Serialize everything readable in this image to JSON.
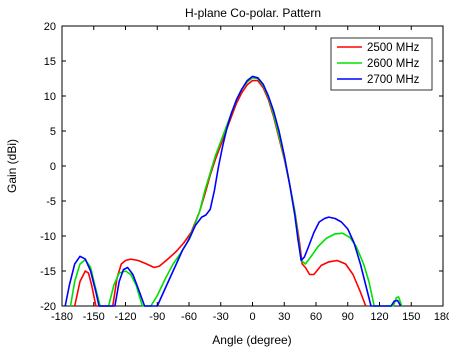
{
  "chart_data": {
    "type": "line",
    "title": "H-plane Co-polar. Pattern",
    "xlabel": "Angle (degree)",
    "ylabel": "Gain (dBi)",
    "xlim": [
      -180,
      180
    ],
    "ylim": [
      -20,
      20
    ],
    "xticks": [
      -180,
      -150,
      -120,
      -90,
      -60,
      -30,
      0,
      30,
      60,
      90,
      120,
      150,
      180
    ],
    "yticks": [
      -20,
      -15,
      -10,
      -5,
      0,
      5,
      10,
      15,
      20
    ],
    "grid": false,
    "legend_position": "top-right",
    "series": [
      {
        "name": "2500 MHz",
        "color": "#ff0000",
        "points": [
          [
            -168,
            -20
          ],
          [
            -163,
            -16.5
          ],
          [
            -158,
            -15
          ],
          [
            -155,
            -15.3
          ],
          [
            -152,
            -17
          ],
          [
            -148,
            -20
          ],
          [
            -132,
            -20
          ],
          [
            -128,
            -16
          ],
          [
            -124,
            -14
          ],
          [
            -120,
            -13.5
          ],
          [
            -115,
            -13.3
          ],
          [
            -108,
            -13.5
          ],
          [
            -100,
            -14
          ],
          [
            -93,
            -14.5
          ],
          [
            -88,
            -14.3
          ],
          [
            -80,
            -13.3
          ],
          [
            -72,
            -12.2
          ],
          [
            -65,
            -11
          ],
          [
            -58,
            -9.5
          ],
          [
            -50,
            -6.5
          ],
          [
            -45,
            -4
          ],
          [
            -40,
            -1.3
          ],
          [
            -35,
            1
          ],
          [
            -30,
            3
          ],
          [
            -25,
            5
          ],
          [
            -20,
            7
          ],
          [
            -15,
            9
          ],
          [
            -10,
            10.5
          ],
          [
            -5,
            11.6
          ],
          [
            0,
            12.2
          ],
          [
            5,
            12.2
          ],
          [
            10,
            11.2
          ],
          [
            15,
            9.5
          ],
          [
            20,
            7
          ],
          [
            25,
            4
          ],
          [
            30,
            1
          ],
          [
            35,
            -2.5
          ],
          [
            40,
            -6.5
          ],
          [
            44,
            -10.5
          ],
          [
            47,
            -14
          ],
          [
            50,
            -14.5
          ],
          [
            54,
            -15.5
          ],
          [
            58,
            -15.5
          ],
          [
            65,
            -14.2
          ],
          [
            72,
            -13.7
          ],
          [
            80,
            -13.5
          ],
          [
            88,
            -14
          ],
          [
            95,
            -15.5
          ],
          [
            102,
            -18
          ],
          [
            107,
            -20
          ]
        ]
      },
      {
        "name": "2600 MHz",
        "color": "#00e000",
        "points": [
          [
            -172,
            -20
          ],
          [
            -168,
            -16.5
          ],
          [
            -163,
            -14
          ],
          [
            -158,
            -13.4
          ],
          [
            -153,
            -14.5
          ],
          [
            -149,
            -17
          ],
          [
            -144,
            -20
          ],
          [
            -136,
            -20
          ],
          [
            -131,
            -17
          ],
          [
            -126,
            -15.3
          ],
          [
            -120,
            -15
          ],
          [
            -115,
            -15.5
          ],
          [
            -110,
            -17
          ],
          [
            -104,
            -20
          ],
          [
            -96,
            -20
          ],
          [
            -90,
            -18.5
          ],
          [
            -82,
            -16
          ],
          [
            -75,
            -14
          ],
          [
            -68,
            -12.5
          ],
          [
            -62,
            -11
          ],
          [
            -56,
            -9
          ],
          [
            -50,
            -6.5
          ],
          [
            -45,
            -3.5
          ],
          [
            -40,
            -1
          ],
          [
            -35,
            1.5
          ],
          [
            -30,
            3.5
          ],
          [
            -25,
            5.5
          ],
          [
            -20,
            7.5
          ],
          [
            -15,
            9.5
          ],
          [
            -10,
            11
          ],
          [
            -5,
            12
          ],
          [
            0,
            12.6
          ],
          [
            5,
            12.5
          ],
          [
            10,
            11.5
          ],
          [
            15,
            9.8
          ],
          [
            20,
            7.3
          ],
          [
            25,
            4.3
          ],
          [
            30,
            1.2
          ],
          [
            35,
            -2.5
          ],
          [
            40,
            -6.5
          ],
          [
            43,
            -10
          ],
          [
            46,
            -13.5
          ],
          [
            50,
            -14
          ],
          [
            55,
            -13
          ],
          [
            62,
            -11.5
          ],
          [
            70,
            -10.3
          ],
          [
            78,
            -9.7
          ],
          [
            85,
            -9.6
          ],
          [
            92,
            -10.2
          ],
          [
            98,
            -11.5
          ],
          [
            105,
            -14
          ],
          [
            110,
            -16.5
          ],
          [
            115,
            -20
          ],
          [
            133,
            -20
          ],
          [
            136,
            -18.8
          ],
          [
            138,
            -18.7
          ],
          [
            141,
            -20
          ]
        ]
      },
      {
        "name": "2700 MHz",
        "color": "#0000ff",
        "points": [
          [
            -177,
            -20
          ],
          [
            -173,
            -17
          ],
          [
            -168,
            -14
          ],
          [
            -163,
            -12.9
          ],
          [
            -158,
            -13.3
          ],
          [
            -153,
            -15
          ],
          [
            -148,
            -18
          ],
          [
            -145,
            -20
          ],
          [
            -130,
            -20
          ],
          [
            -126,
            -16.5
          ],
          [
            -122,
            -14.8
          ],
          [
            -118,
            -14.5
          ],
          [
            -113,
            -15.5
          ],
          [
            -108,
            -17.5
          ],
          [
            -102,
            -20
          ],
          [
            -90,
            -20
          ],
          [
            -84,
            -18
          ],
          [
            -78,
            -16
          ],
          [
            -72,
            -14
          ],
          [
            -66,
            -12
          ],
          [
            -60,
            -10.5
          ],
          [
            -54,
            -8.5
          ],
          [
            -48,
            -7.3
          ],
          [
            -44,
            -7
          ],
          [
            -40,
            -6.2
          ],
          [
            -36,
            -3.5
          ],
          [
            -32,
            0
          ],
          [
            -28,
            3
          ],
          [
            -24,
            5.5
          ],
          [
            -20,
            7.5
          ],
          [
            -15,
            9.5
          ],
          [
            -10,
            11
          ],
          [
            -5,
            12.2
          ],
          [
            0,
            12.8
          ],
          [
            5,
            12.6
          ],
          [
            10,
            11.7
          ],
          [
            15,
            10
          ],
          [
            20,
            7.8
          ],
          [
            25,
            5
          ],
          [
            30,
            1.5
          ],
          [
            35,
            -2.5
          ],
          [
            40,
            -7
          ],
          [
            43,
            -10.5
          ],
          [
            46,
            -13.5
          ],
          [
            49,
            -13
          ],
          [
            53,
            -11.5
          ],
          [
            58,
            -9.5
          ],
          [
            63,
            -8
          ],
          [
            68,
            -7.5
          ],
          [
            72,
            -7.3
          ],
          [
            78,
            -7.5
          ],
          [
            84,
            -8
          ],
          [
            90,
            -9
          ],
          [
            96,
            -11
          ],
          [
            102,
            -14
          ],
          [
            107,
            -17
          ],
          [
            112,
            -20
          ],
          [
            131,
            -20
          ],
          [
            134,
            -19.3
          ],
          [
            137,
            -19.2
          ],
          [
            140,
            -20
          ]
        ]
      }
    ]
  }
}
